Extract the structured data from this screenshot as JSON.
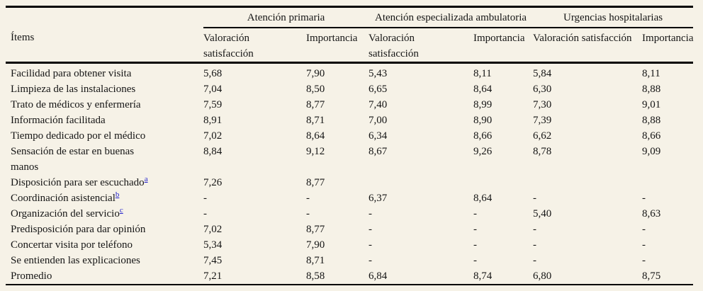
{
  "colors": {
    "background": "#f6f2e7",
    "rule": "#000000",
    "footnote_link": "#2222cc",
    "text": "#151515"
  },
  "header": {
    "items_label": "Ítems",
    "groups": [
      {
        "label": "Atención primaria"
      },
      {
        "label": "Atención especializada ambulatoria"
      },
      {
        "label": "Urgencias hospitalarias"
      }
    ],
    "subheaders": [
      {
        "label": "Valoración\nsatisfacción"
      },
      {
        "label": "Importancia"
      },
      {
        "label": "Valoración\nsatisfacción"
      },
      {
        "label": "Importancia"
      },
      {
        "label": "Valoración satisfacción"
      },
      {
        "label": "Importancia"
      }
    ]
  },
  "rows": [
    {
      "item": "Facilidad para obtener visita",
      "note": "",
      "values": [
        "5,68",
        "7,90",
        "5,43",
        "8,11",
        "5,84",
        "8,11"
      ]
    },
    {
      "item": "Limpieza de las instalaciones",
      "note": "",
      "values": [
        "7,04",
        "8,50",
        "6,65",
        "8,64",
        "6,30",
        "8,88"
      ]
    },
    {
      "item": "Trato de médicos y enfermería",
      "note": "",
      "values": [
        "7,59",
        "8,77",
        "7,40",
        "8,99",
        "7,30",
        "9,01"
      ]
    },
    {
      "item": "Información facilitada",
      "note": "",
      "values": [
        "8,91",
        "8,71",
        "7,00",
        "8,90",
        "7,39",
        "8,88"
      ]
    },
    {
      "item": "Tiempo dedicado por el médico",
      "note": "",
      "values": [
        "7,02",
        "8,64",
        "6,34",
        "8,66",
        "6,62",
        "8,66"
      ]
    },
    {
      "item": "Sensación de estar en buenas\nmanos",
      "note": "",
      "values": [
        "8,84",
        "9,12",
        "8,67",
        "9,26",
        "8,78",
        "9,09"
      ]
    },
    {
      "item": "Disposición para ser escuchado",
      "note": "a",
      "values": [
        "7,26",
        "8,77",
        "",
        "",
        "",
        ""
      ]
    },
    {
      "item": "Coordinación asistencial",
      "note": "b",
      "values": [
        "-",
        "-",
        "6,37",
        "8,64",
        "-",
        "-"
      ]
    },
    {
      "item": "Organización del servicio",
      "note": "c",
      "values": [
        "-",
        "-",
        "-",
        "-",
        "5,40",
        "8,63"
      ]
    },
    {
      "item": "Predisposición para dar opinión",
      "note": "",
      "values": [
        "7,02",
        "8,77",
        "-",
        "-",
        "-",
        "-"
      ]
    },
    {
      "item": "Concertar visita por teléfono",
      "note": "",
      "values": [
        "5,34",
        "7,90",
        "-",
        "-",
        "-",
        "-"
      ]
    },
    {
      "item": "Se entienden las explicaciones",
      "note": "",
      "values": [
        "7,45",
        "8,71",
        "-",
        "-",
        "-",
        "-"
      ]
    },
    {
      "item": "Promedio",
      "note": "",
      "values": [
        "7,21",
        "8,58",
        "6,84",
        "8,74",
        "6,80",
        "8,75"
      ]
    }
  ]
}
